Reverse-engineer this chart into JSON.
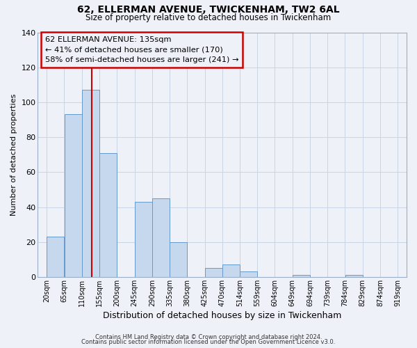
{
  "title": "62, ELLERMAN AVENUE, TWICKENHAM, TW2 6AL",
  "subtitle": "Size of property relative to detached houses in Twickenham",
  "xlabel": "Distribution of detached houses by size in Twickenham",
  "ylabel": "Number of detached properties",
  "bin_edges": [
    20,
    65,
    110,
    155,
    200,
    245,
    290,
    335,
    380,
    425,
    470,
    514,
    559,
    604,
    649,
    694,
    739,
    784,
    829,
    874,
    919
  ],
  "bar_heights": [
    23,
    93,
    107,
    71,
    0,
    43,
    45,
    20,
    0,
    5,
    7,
    3,
    0,
    0,
    1,
    0,
    0,
    1,
    0,
    0
  ],
  "bin_labels": [
    "20sqm",
    "65sqm",
    "110sqm",
    "155sqm",
    "200sqm",
    "245sqm",
    "290sqm",
    "335sqm",
    "380sqm",
    "425sqm",
    "470sqm",
    "514sqm",
    "559sqm",
    "604sqm",
    "649sqm",
    "694sqm",
    "739sqm",
    "784sqm",
    "829sqm",
    "874sqm",
    "919sqm"
  ],
  "bar_color": "#c5d8ee",
  "bar_edgecolor": "#6699cc",
  "vline_x": 135,
  "vline_color": "#cc0000",
  "ylim": [
    0,
    140
  ],
  "yticks": [
    0,
    20,
    40,
    60,
    80,
    100,
    120,
    140
  ],
  "annotation_title": "62 ELLERMAN AVENUE: 135sqm",
  "annotation_line1": "← 41% of detached houses are smaller (170)",
  "annotation_line2": "58% of semi-detached houses are larger (241) →",
  "annotation_box_color": "#cc0000",
  "footer1": "Contains HM Land Registry data © Crown copyright and database right 2024.",
  "footer2": "Contains public sector information licensed under the Open Government Licence v3.0.",
  "background_color": "#eef2f8",
  "grid_color": "#c8d4e4",
  "spine_color": "#9aaec8"
}
